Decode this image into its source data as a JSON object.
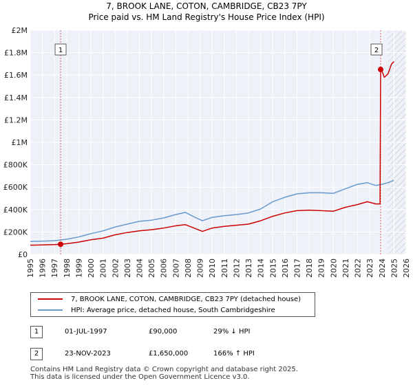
{
  "chart_data": {
    "type": "line",
    "title": "7, BROOK LANE, COTON, CAMBRIDGE, CB23 7PY",
    "subtitle": "Price paid vs. HM Land Registry's House Price Index (HPI)",
    "xlim": [
      1995,
      2026
    ],
    "ylim": [
      0,
      2000000
    ],
    "x_ticks": [
      1995,
      1996,
      1997,
      1998,
      1999,
      2000,
      2001,
      2002,
      2003,
      2004,
      2005,
      2006,
      2007,
      2008,
      2009,
      2010,
      2011,
      2012,
      2013,
      2014,
      2015,
      2016,
      2017,
      2018,
      2019,
      2020,
      2021,
      2022,
      2023,
      2024,
      2025,
      2026
    ],
    "y_ticks": [
      {
        "value": 0,
        "label": "£0"
      },
      {
        "value": 200000,
        "label": "£200K"
      },
      {
        "value": 400000,
        "label": "£400K"
      },
      {
        "value": 600000,
        "label": "£600K"
      },
      {
        "value": 800000,
        "label": "£800K"
      },
      {
        "value": 1000000,
        "label": "£1M"
      },
      {
        "value": 1200000,
        "label": "£1.2M"
      },
      {
        "value": 1400000,
        "label": "£1.4M"
      },
      {
        "value": 1600000,
        "label": "£1.6M"
      },
      {
        "value": 1800000,
        "label": "£1.8M"
      },
      {
        "value": 2000000,
        "label": "£2M"
      }
    ],
    "grid": true,
    "future_hatch_from": 2024.5,
    "series": [
      {
        "name": "7, BROOK LANE, COTON, CAMBRIDGE, CB23 7PY (detached house)",
        "color": "#cc0000",
        "x": [
          1995.0,
          1996.0,
          1997.0,
          1997.5,
          1998.0,
          1999.0,
          2000.0,
          2001.0,
          2002.0,
          2003.0,
          2004.0,
          2005.0,
          2006.0,
          2007.0,
          2007.8,
          2008.5,
          2009.2,
          2010.0,
          2011.0,
          2012.0,
          2013.0,
          2014.0,
          2015.0,
          2016.0,
          2017.0,
          2018.0,
          2019.0,
          2020.0,
          2021.0,
          2022.0,
          2022.8,
          2023.5,
          2023.85,
          2023.9,
          2024.0,
          2024.2,
          2024.5,
          2024.8,
          2025.0
        ],
        "y": [
          82000,
          84000,
          87000,
          90000,
          95000,
          110000,
          130000,
          145000,
          175000,
          195000,
          210000,
          220000,
          235000,
          255000,
          265000,
          235000,
          205000,
          235000,
          250000,
          260000,
          270000,
          300000,
          340000,
          370000,
          390000,
          395000,
          390000,
          385000,
          420000,
          445000,
          470000,
          450000,
          450000,
          1650000,
          1640000,
          1580000,
          1610000,
          1700000,
          1720000
        ]
      },
      {
        "name": "HPI: Average price, detached house, South Cambridgeshire",
        "color": "#6699cc",
        "x": [
          1995.0,
          1996.0,
          1997.0,
          1998.0,
          1999.0,
          2000.0,
          2001.0,
          2002.0,
          2003.0,
          2004.0,
          2005.0,
          2006.0,
          2007.0,
          2007.8,
          2008.5,
          2009.2,
          2010.0,
          2011.0,
          2012.0,
          2013.0,
          2014.0,
          2015.0,
          2016.0,
          2017.0,
          2018.0,
          2019.0,
          2020.0,
          2021.0,
          2022.0,
          2022.8,
          2023.5,
          2024.0,
          2024.5,
          2025.0
        ],
        "y": [
          115000,
          118000,
          122000,
          135000,
          155000,
          185000,
          210000,
          245000,
          270000,
          295000,
          305000,
          325000,
          355000,
          375000,
          335000,
          300000,
          330000,
          345000,
          355000,
          370000,
          405000,
          470000,
          510000,
          540000,
          550000,
          550000,
          545000,
          585000,
          625000,
          640000,
          615000,
          625000,
          640000,
          660000
        ]
      }
    ],
    "annotations": [
      {
        "label": "1",
        "x": 1997.5
      },
      {
        "label": "2",
        "x": 2023.9
      }
    ],
    "sale_points": [
      {
        "x": 1997.5,
        "y": 90000
      },
      {
        "x": 2023.9,
        "y": 1650000
      }
    ]
  },
  "legend": {
    "entries": [
      {
        "label": "7, BROOK LANE, COTON, CAMBRIDGE, CB23 7PY (detached house)",
        "color": "#cc0000"
      },
      {
        "label": "HPI: Average price, detached house, South Cambridgeshire",
        "color": "#6699cc"
      }
    ]
  },
  "sales": [
    {
      "num": "1",
      "date": "01-JUL-1997",
      "price": "£90,000",
      "hpi": "29% ↓ HPI"
    },
    {
      "num": "2",
      "date": "23-NOV-2023",
      "price": "£1,650,000",
      "hpi": "166% ↑ HPI"
    }
  ],
  "footer": {
    "line1": "Contains HM Land Registry data © Crown copyright and database right 2025.",
    "line2": "This data is licensed under the Open Government Licence v3.0."
  }
}
